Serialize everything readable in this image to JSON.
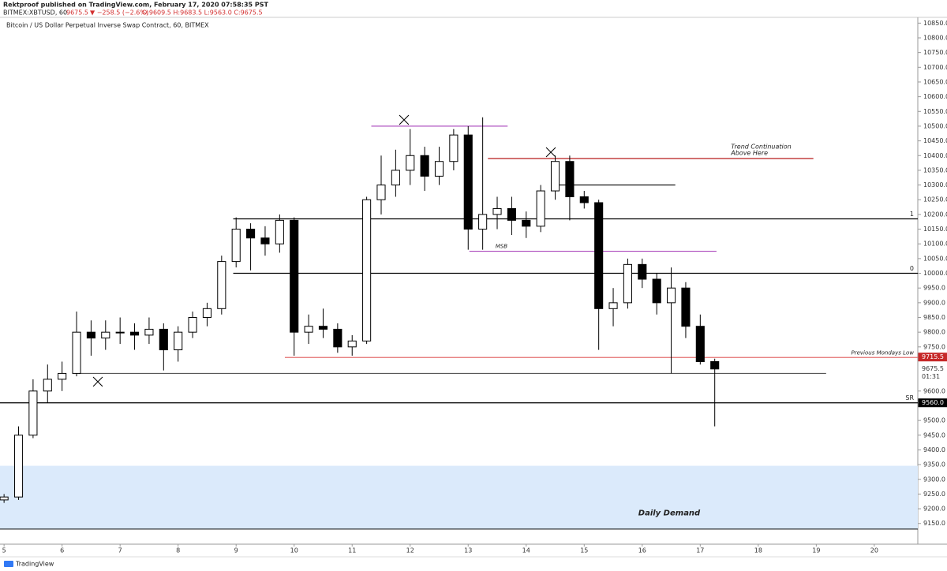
{
  "header": {
    "publisher": "Rektproof published on TradingView.com, February 17, 2020 07:58:35 PST",
    "symbol": "BITMEX:XBTUSD, 60",
    "last": "9675.5",
    "change": "▼ −258.5 (−2.6%)",
    "ohlc": "O:9609.5 H:9683.5 L:9563.0 C:9675.5",
    "instrument": "Bitcoin / US Dollar Perpetual Inverse Swap Contract, 60, BITMEX"
  },
  "footer": {
    "brand": "TradingView"
  },
  "chart_data": {
    "type": "candlestick",
    "up_color": "#ffffff",
    "down_color": "#000000",
    "x": [
      5,
      5.25,
      5.5,
      5.75,
      6,
      6.25,
      6.5,
      6.75,
      7,
      7.25,
      7.5,
      7.75,
      8,
      8.25,
      8.5,
      8.75,
      9,
      9.25,
      9.5,
      9.75,
      10,
      10.25,
      10.5,
      10.75,
      11,
      11.25,
      11.5,
      11.75,
      12,
      12.25,
      12.5,
      12.75,
      13,
      13.25,
      13.5,
      13.75,
      14,
      14.25,
      14.5,
      14.75,
      15,
      15.25,
      15.5,
      15.75,
      16,
      16.25,
      16.5,
      16.75,
      17,
      17.25
    ],
    "open": [
      9230,
      9240,
      9450,
      9600,
      9640,
      9660,
      9800,
      9780,
      9800,
      9800,
      9790,
      9810,
      9740,
      9800,
      9850,
      9880,
      10040,
      10150,
      10120,
      10100,
      10180,
      9800,
      9820,
      9810,
      9750,
      9770,
      10250,
      10300,
      10350,
      10400,
      10330,
      10380,
      10470,
      10150,
      10200,
      10220,
      10180,
      10160,
      10280,
      10380,
      10260,
      10240,
      9880,
      9900,
      10030,
      9980,
      9900,
      9950,
      9820,
      9700
    ],
    "high": [
      9250,
      9480,
      9640,
      9690,
      9700,
      9870,
      9840,
      9840,
      9850,
      9830,
      9850,
      9830,
      9820,
      9870,
      9900,
      10060,
      10190,
      10170,
      10160,
      10200,
      10190,
      9860,
      9880,
      9830,
      9790,
      10260,
      10400,
      10420,
      10490,
      10430,
      10430,
      10490,
      10500,
      10530,
      10260,
      10260,
      10210,
      10300,
      10400,
      10400,
      10280,
      10250,
      9950,
      10050,
      10050,
      10000,
      10020,
      9970,
      9860,
      9710
    ],
    "low": [
      9220,
      9230,
      9440,
      9560,
      9600,
      9650,
      9720,
      9740,
      9760,
      9740,
      9760,
      9670,
      9700,
      9780,
      9820,
      9860,
      10020,
      10010,
      10060,
      10070,
      9720,
      9760,
      9780,
      9730,
      9720,
      9760,
      10200,
      10260,
      10300,
      10280,
      10300,
      10350,
      10080,
      10080,
      10150,
      10130,
      10120,
      10140,
      10250,
      10180,
      10220,
      9740,
      9820,
      9880,
      9950,
      9860,
      9660,
      9780,
      9690,
      9480
    ],
    "close": [
      9240,
      9450,
      9600,
      9640,
      9660,
      9800,
      9780,
      9800,
      9800,
      9790,
      9810,
      9740,
      9800,
      9850,
      9880,
      10040,
      10150,
      10120,
      10100,
      10180,
      9800,
      9820,
      9810,
      9750,
      9770,
      10250,
      10300,
      10350,
      10400,
      10330,
      10380,
      10470,
      10150,
      10200,
      10220,
      10180,
      10160,
      10280,
      10380,
      10260,
      10240,
      9880,
      9900,
      10030,
      9980,
      9900,
      9950,
      9820,
      9700,
      9675
    ],
    "xlim": [
      4.93,
      20.75
    ],
    "xticks": [
      5,
      6,
      7,
      8,
      9,
      10,
      11,
      12,
      13,
      14,
      15,
      16,
      17,
      18,
      19,
      20
    ],
    "ylim": [
      9085,
      10875
    ],
    "yticks": [
      {
        "value": 9150,
        "label": "9150.0"
      },
      {
        "value": 9200,
        "label": "9200.0"
      },
      {
        "value": 9250,
        "label": "9250.0"
      },
      {
        "value": 9300,
        "label": "9300.0"
      },
      {
        "value": 9350,
        "label": "9350.0"
      },
      {
        "value": 9400,
        "label": "9400.0"
      },
      {
        "value": 9450,
        "label": "9450.0"
      },
      {
        "value": 9500,
        "label": "9500.0"
      },
      {
        "value": 9600,
        "label": "9600.0"
      },
      {
        "value": 9750,
        "label": "9750.0"
      },
      {
        "value": 9800,
        "label": "9800.0"
      },
      {
        "value": 9850,
        "label": "9850.0"
      },
      {
        "value": 9900,
        "label": "9900.0"
      },
      {
        "value": 9950,
        "label": "9950.0"
      },
      {
        "value": 10000,
        "label": "10000.0"
      },
      {
        "value": 10050,
        "label": "10050.0"
      },
      {
        "value": 10100,
        "label": "10100.0"
      },
      {
        "value": 10150,
        "label": "10150.0"
      },
      {
        "value": 10200,
        "label": "10200.0"
      },
      {
        "value": 10250,
        "label": "10250.0"
      },
      {
        "value": 10300,
        "label": "10300.0"
      },
      {
        "value": 10350,
        "label": "10350.0"
      },
      {
        "value": 10400,
        "label": "10400.0"
      },
      {
        "value": 10450,
        "label": "10450.0"
      },
      {
        "value": 10500,
        "label": "10500.0"
      },
      {
        "value": 10550,
        "label": "10550.0"
      },
      {
        "value": 10600,
        "label": "10600.0"
      },
      {
        "value": 10650,
        "label": "10650.0"
      },
      {
        "value": 10700,
        "label": "10700.0"
      },
      {
        "value": 10750,
        "label": "10750.0"
      },
      {
        "value": 10800,
        "label": "10800.0"
      },
      {
        "value": 10850,
        "label": "10850.0"
      }
    ],
    "zone": {
      "from": 9131,
      "to": 9346,
      "color": "#dbeafb",
      "label": "Daily Demand"
    },
    "levels": [
      {
        "value": 10500,
        "x": [
          11.33,
          13.68
        ],
        "color": "#ab47bc"
      },
      {
        "value": 10390,
        "x": [
          13.34,
          18.95
        ],
        "color": "#b71c1c",
        "label": "Trend Continuation",
        "label2": "Above Here"
      },
      {
        "value": 10300,
        "x": [
          14.57,
          16.57
        ],
        "color": "#000000"
      },
      {
        "value": 10185,
        "x": [
          8.95,
          20.75
        ],
        "color": "#000000",
        "label": "1"
      },
      {
        "value": 10075,
        "x": [
          13.02,
          17.28
        ],
        "color": "#ab47bc",
        "label": "MSB"
      },
      {
        "value": 10000,
        "x": [
          8.95,
          20.75
        ],
        "color": "#000000",
        "label": "0"
      },
      {
        "value": 9714,
        "x": [
          9.84,
          20.75
        ],
        "color": "#e57373",
        "label": "Previous Mondays Low"
      },
      {
        "value": 9660,
        "x": [
          6.29,
          19.17
        ],
        "color": "#555555"
      },
      {
        "value": 9560,
        "x": [
          4.93,
          20.75
        ],
        "color": "#000000",
        "label": "SR"
      }
    ],
    "price_labels": [
      {
        "value": 9715.5,
        "label": "9715.5",
        "color": "#c62828"
      },
      {
        "value": 9675.5,
        "label": "9675.5",
        "countdown": "01:31",
        "color": "#ffffff"
      },
      {
        "value": 9560.0,
        "label": "9560.0",
        "color": "#000000"
      }
    ]
  }
}
